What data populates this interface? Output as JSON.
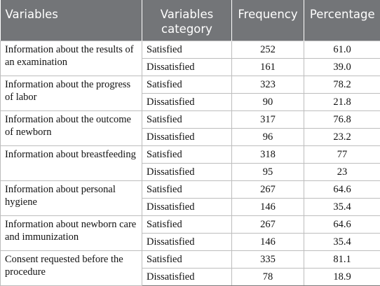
{
  "headers": {
    "variables": "Variables",
    "category": "Variables category",
    "frequency": "Frequency",
    "percentage": "Percentage"
  },
  "rows": [
    {
      "variable": "Information about the results of an examination",
      "sat": {
        "category": "Satisfied",
        "frequency": "252",
        "percentage": "61.0"
      },
      "dis": {
        "category": "Dissatisfied",
        "frequency": "161",
        "percentage": "39.0"
      }
    },
    {
      "variable": "Information about the progress of labor",
      "sat": {
        "category": "Satisfied",
        "frequency": "323",
        "percentage": "78.2"
      },
      "dis": {
        "category": "Dissatisfied",
        "frequency": "90",
        "percentage": "21.8"
      }
    },
    {
      "variable": "Information about the outcome of newborn",
      "sat": {
        "category": "Satisfied",
        "frequency": "317",
        "percentage": "76.8"
      },
      "dis": {
        "category": "Dissatisfied",
        "frequency": "96",
        "percentage": "23.2"
      }
    },
    {
      "variable": "Information about breastfeeding",
      "sat": {
        "category": "Satisfied",
        "frequency": "318",
        "percentage": "77"
      },
      "dis": {
        "category": "Dissatisfied",
        "frequency": "95",
        "percentage": "23"
      }
    },
    {
      "variable": "Information about personal hygiene",
      "sat": {
        "category": "Satisfied",
        "frequency": "267",
        "percentage": "64.6"
      },
      "dis": {
        "category": "Dissatisfied",
        "frequency": "146",
        "percentage": "35.4"
      }
    },
    {
      "variable": "Information about newborn care and immunization",
      "sat": {
        "category": "Satisfied",
        "frequency": "267",
        "percentage": "64.6"
      },
      "dis": {
        "category": "Dissatisfied",
        "frequency": "146",
        "percentage": "35.4"
      }
    },
    {
      "variable": "Consent requested before the procedure",
      "sat": {
        "category": "Satisfied",
        "frequency": "335",
        "percentage": "81.1"
      },
      "dis": {
        "category": "Dissatisfied",
        "frequency": "78",
        "percentage": "18.9"
      }
    }
  ]
}
